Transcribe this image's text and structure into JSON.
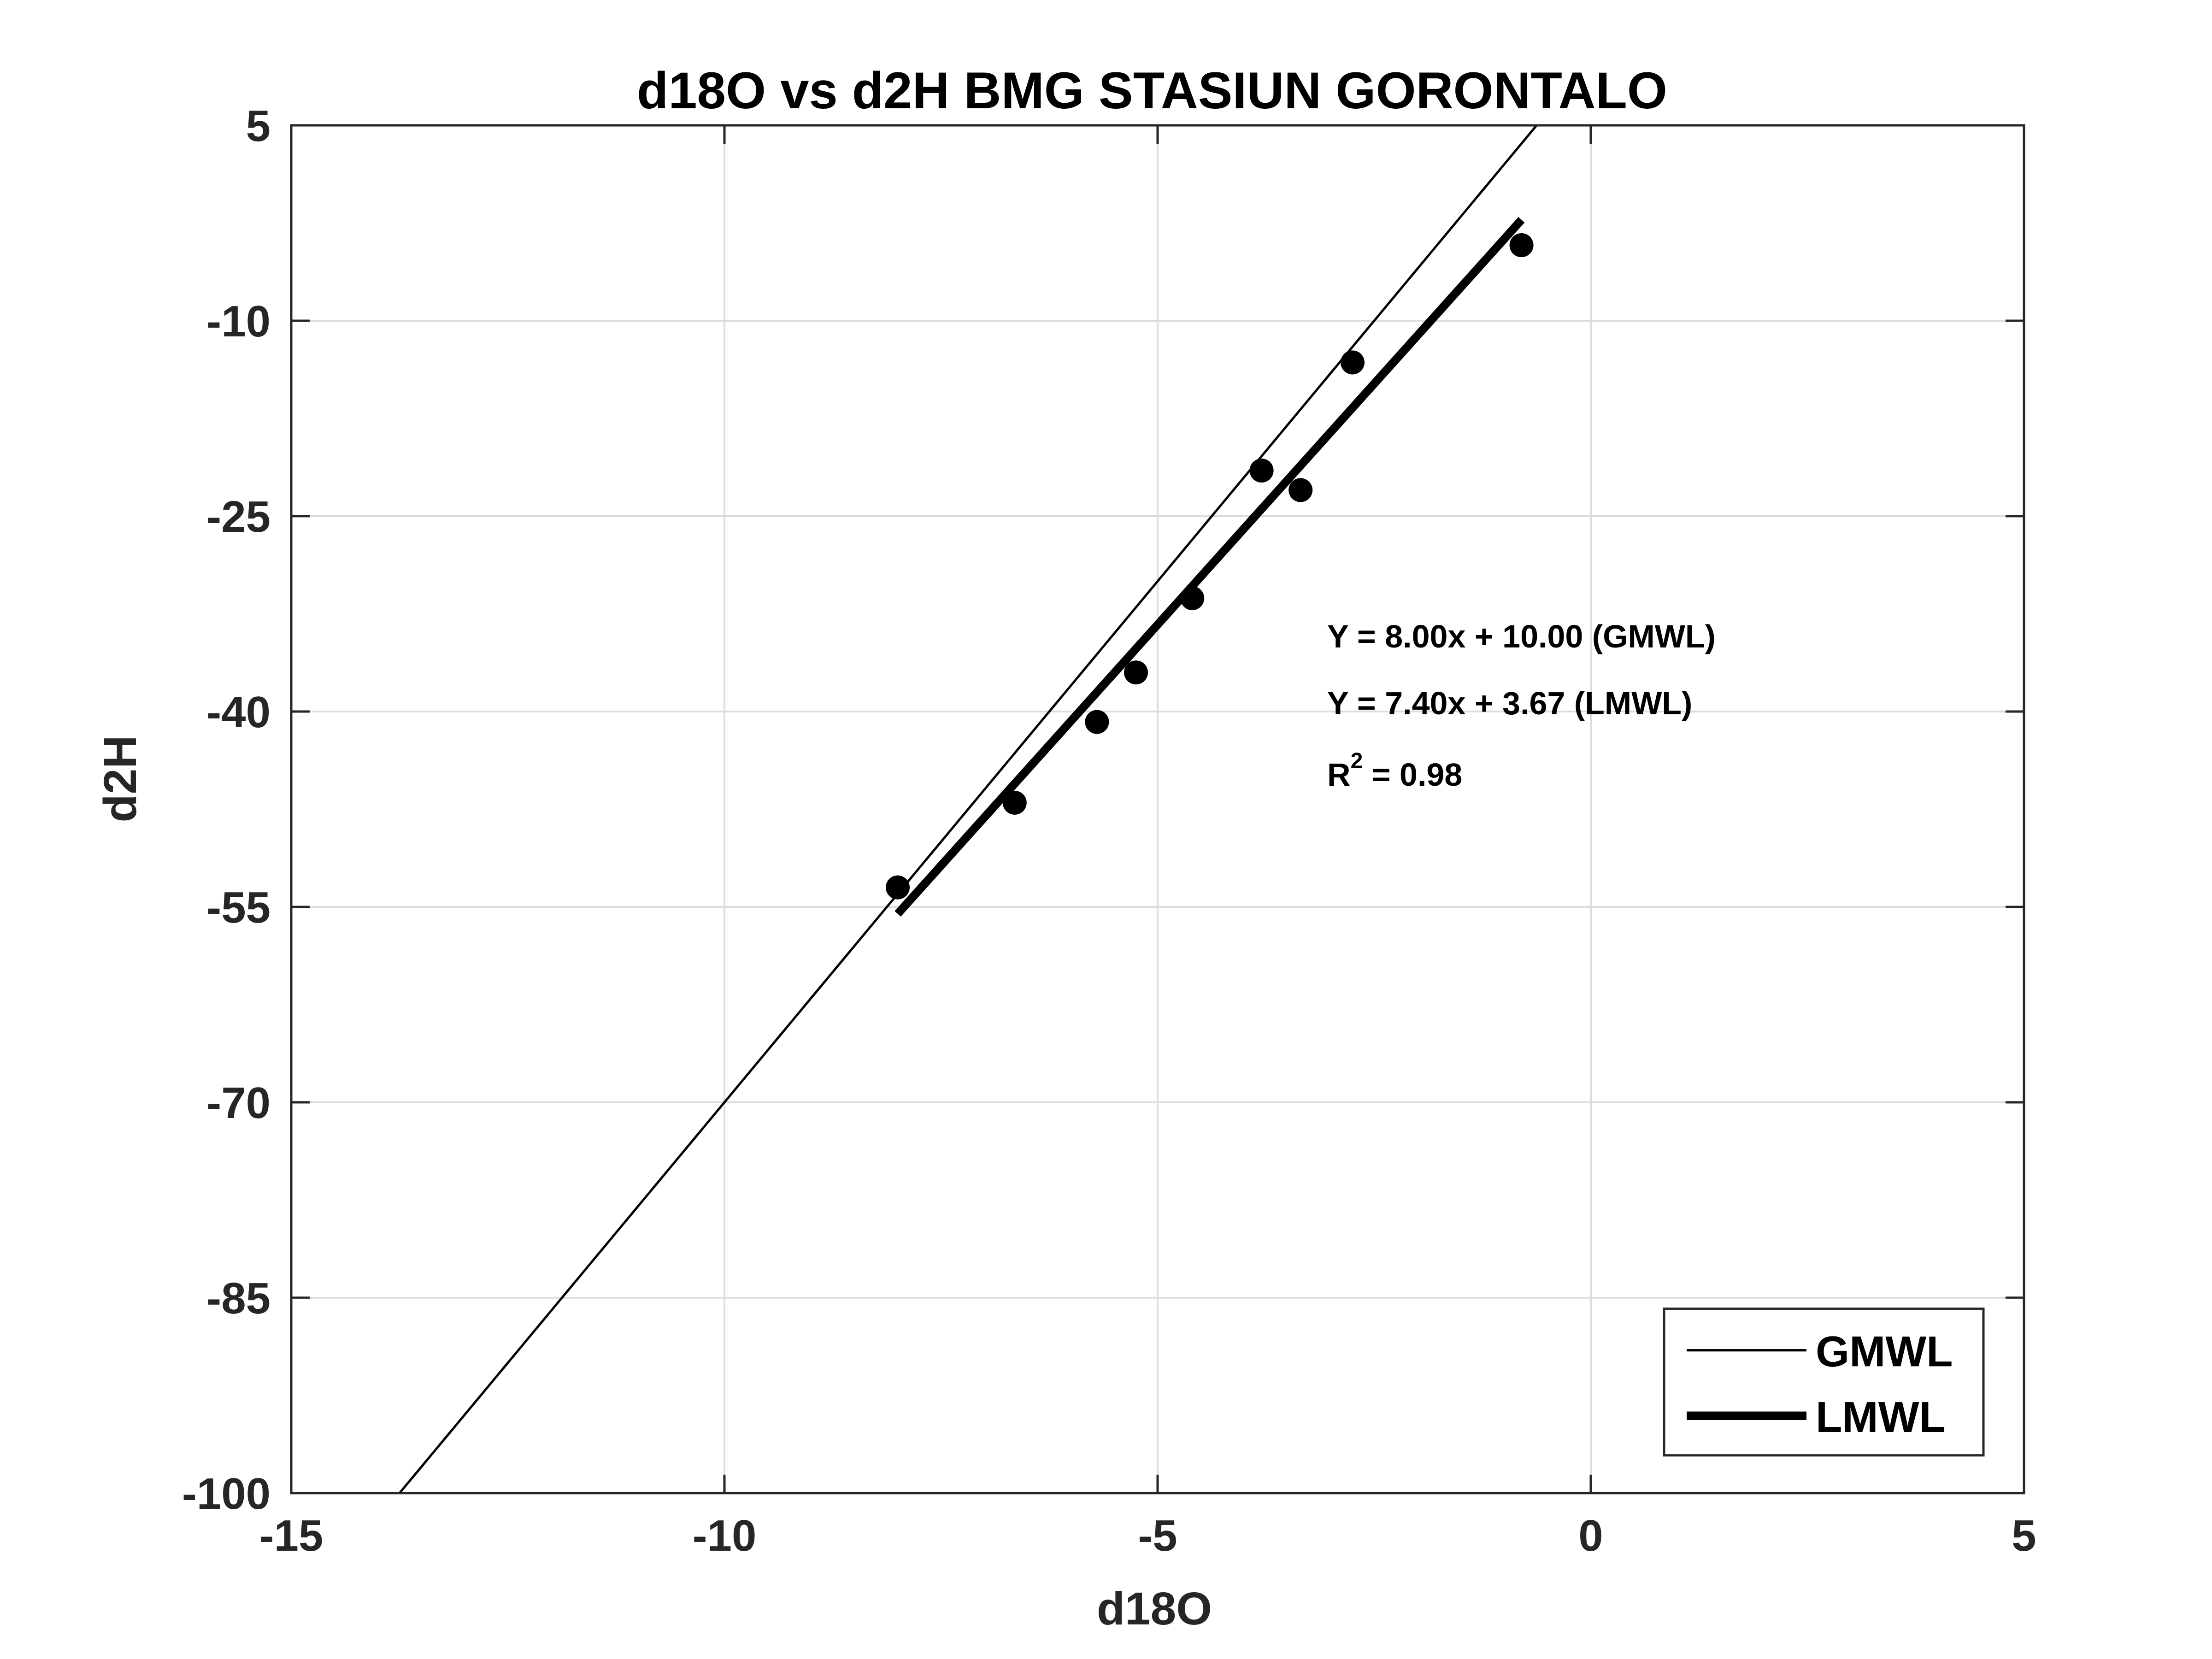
{
  "chart_data": {
    "type": "scatter",
    "title": "d18O vs d2H BMG STASIUN GORONTALO",
    "xlabel": "d18O",
    "ylabel": "d2H",
    "xlim": [
      -15,
      5
    ],
    "ylim": [
      -100,
      5
    ],
    "xticks": [
      -15,
      -10,
      -5,
      0,
      5
    ],
    "yticks": [
      -100,
      -85,
      -70,
      -55,
      -40,
      -25,
      -10,
      5
    ],
    "grid": true,
    "legend_position": "bottom-right",
    "points": {
      "x": [
        -8.0,
        -6.65,
        -5.7,
        -5.25,
        -4.6,
        -3.8,
        -3.35,
        -2.75,
        -0.8
      ],
      "y": [
        -53.5,
        -47.0,
        -40.8,
        -37.0,
        -31.3,
        -21.5,
        -23.0,
        -13.2,
        -4.2
      ]
    },
    "series": [
      {
        "name": "GMWL",
        "slope": 8.0,
        "intercept": 10.0,
        "x_range": [
          -13.75,
          -0.625
        ]
      },
      {
        "name": "LMWL",
        "slope": 7.4,
        "intercept": 3.67,
        "x_range": [
          -8.0,
          -0.8
        ]
      }
    ],
    "annotations": [
      {
        "text": "Y = 8.00x + 10.00 (GMWL)"
      },
      {
        "text": "Y = 7.40x + 3.67 (LMWL)"
      },
      {
        "text": "R",
        "superscript": "2",
        "suffix": " = 0.98"
      }
    ]
  }
}
